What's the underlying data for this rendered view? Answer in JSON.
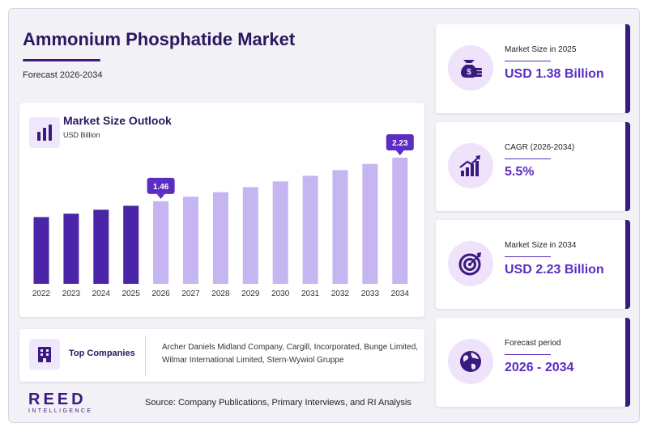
{
  "header": {
    "title": "Ammonium Phosphatide Market",
    "subtitle": "Forecast 2026-2034"
  },
  "chart": {
    "title": "Market Size Outlook",
    "unit": "USD Billion"
  },
  "chart_data": {
    "type": "bar",
    "categories": [
      "2022",
      "2023",
      "2024",
      "2025",
      "2026",
      "2027",
      "2028",
      "2029",
      "2030",
      "2031",
      "2032",
      "2033",
      "2034"
    ],
    "values": [
      1.18,
      1.24,
      1.31,
      1.38,
      1.46,
      1.54,
      1.62,
      1.71,
      1.81,
      1.91,
      2.01,
      2.12,
      2.23
    ],
    "historical_color": "#4a25a8",
    "forecast_color": "#c5b5f0",
    "callouts": [
      {
        "category": "2026",
        "label": "1.46"
      },
      {
        "category": "2034",
        "label": "2.23"
      }
    ],
    "callout_color": "#5b2dc2",
    "ylim": [
      0,
      2.23
    ],
    "grid": false
  },
  "companies": {
    "title": "Top Companies",
    "text": "Archer Daniels Midland Company, Cargill, Incorporated, Bunge Limited, Wilmar International Limited, Stern-Wywiol Gruppe"
  },
  "logo": {
    "main": "REED",
    "sub": "INTELLIGENCE"
  },
  "source": "Source: Company Publications, Primary Interviews, and RI Analysis",
  "stats": [
    {
      "label": "Market Size in 2025",
      "value": "USD 1.38 Billion",
      "icon": "money-bag-icon"
    },
    {
      "label": "CAGR (2026-2034)",
      "value": "5.5%",
      "icon": "growth-chart-icon"
    },
    {
      "label": "Market Size in 2034",
      "value": "USD 2.23 Billion",
      "icon": "target-icon"
    },
    {
      "label": "Forecast period",
      "value": "2026 - 2034",
      "icon": "globe-icon"
    }
  ],
  "colors": {
    "brand_dark": "#2b1660",
    "accent": "#5b2dc2",
    "icon_background": "#eee3fb"
  }
}
